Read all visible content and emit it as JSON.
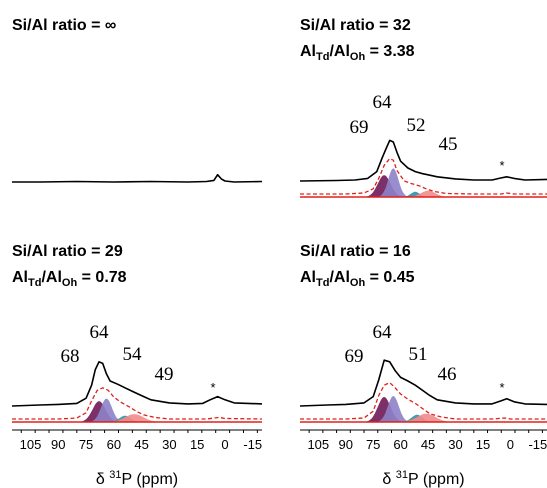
{
  "chart_data": [
    {
      "type": "line",
      "title": "Si/Al ratio = ∞",
      "subtitle": null,
      "peak_labels": [],
      "artifact_marker": null,
      "x_axis_shown": false,
      "xlim": [
        115,
        -20
      ],
      "spectrum": [
        [
          115,
          0.0
        ],
        [
          100,
          0.0
        ],
        [
          80,
          0.01
        ],
        [
          60,
          0.0
        ],
        [
          40,
          0.01
        ],
        [
          20,
          0.0
        ],
        [
          10,
          0.01
        ],
        [
          6,
          0.03
        ],
        [
          4,
          0.14
        ],
        [
          2,
          0.06
        ],
        [
          0,
          0.02
        ],
        [
          -5,
          0.0
        ],
        [
          -20,
          0.01
        ]
      ]
    },
    {
      "type": "line",
      "title": "Si/Al ratio = 32",
      "subtitle": {
        "prefix": "Al",
        "sub1": "Td",
        "mid": "/Al",
        "sub2": "Oh",
        "suffix": " = 3.38"
      },
      "peak_labels": [
        {
          "text": "69",
          "ppm": 69
        },
        {
          "text": "64",
          "ppm": 64
        },
        {
          "text": "52",
          "ppm": 52
        },
        {
          "text": "45",
          "ppm": 45
        }
      ],
      "artifact_marker": {
        "text": "*",
        "ppm": 2
      },
      "x_axis_shown": false,
      "xlim": [
        115,
        -20
      ],
      "spectrum": [
        [
          115,
          0.0
        ],
        [
          95,
          0.01
        ],
        [
          85,
          0.02
        ],
        [
          78,
          0.05
        ],
        [
          73,
          0.18
        ],
        [
          70,
          0.45
        ],
        [
          68,
          0.62
        ],
        [
          66,
          0.78
        ],
        [
          64,
          0.75
        ],
        [
          62,
          0.55
        ],
        [
          60,
          0.38
        ],
        [
          56,
          0.25
        ],
        [
          52,
          0.18
        ],
        [
          48,
          0.14
        ],
        [
          45,
          0.12
        ],
        [
          40,
          0.08
        ],
        [
          30,
          0.04
        ],
        [
          20,
          0.02
        ],
        [
          10,
          0.02
        ],
        [
          5,
          0.06
        ],
        [
          2,
          0.08
        ],
        [
          -2,
          0.05
        ],
        [
          -8,
          0.02
        ],
        [
          -20,
          0.03
        ]
      ],
      "fit_envelope": [
        [
          115,
          0.0
        ],
        [
          90,
          0.0
        ],
        [
          80,
          0.02
        ],
        [
          75,
          0.1
        ],
        [
          72,
          0.3
        ],
        [
          69,
          0.55
        ],
        [
          66,
          0.68
        ],
        [
          64,
          0.65
        ],
        [
          62,
          0.45
        ],
        [
          58,
          0.25
        ],
        [
          54,
          0.2
        ],
        [
          50,
          0.16
        ],
        [
          46,
          0.1
        ],
        [
          42,
          0.05
        ],
        [
          35,
          0.01
        ],
        [
          20,
          0.0
        ],
        [
          5,
          0.0
        ],
        [
          2,
          0.02
        ],
        [
          -2,
          0.0
        ],
        [
          -20,
          0.0
        ]
      ],
      "components": [
        {
          "color": "#6e1a57",
          "center": 69,
          "height": 0.42,
          "width": 3.5
        },
        {
          "color": "#8e82c8",
          "center": 64,
          "height": 0.55,
          "width": 2.8
        },
        {
          "color": "#2e8fa6",
          "center": 52,
          "height": 0.1,
          "width": 2.5
        },
        {
          "color": "#f18c8c",
          "center": 45,
          "height": 0.12,
          "width": 4
        }
      ]
    },
    {
      "type": "line",
      "title": "Si/Al ratio = 29",
      "subtitle": {
        "prefix": "Al",
        "sub1": "Td",
        "mid": "/Al",
        "sub2": "Oh",
        "suffix": " = 0.78"
      },
      "peak_labels": [
        {
          "text": "68",
          "ppm": 68
        },
        {
          "text": "64",
          "ppm": 64
        },
        {
          "text": "54",
          "ppm": 54
        },
        {
          "text": "49",
          "ppm": 49
        }
      ],
      "artifact_marker": {
        "text": "*",
        "ppm": 2
      },
      "x_axis_shown": true,
      "xlabel": {
        "prefix": "δ ",
        "sup": "31",
        "suffix": "P (ppm)"
      },
      "xticks": [
        "105",
        "90",
        "75",
        "60",
        "45",
        "30",
        "15",
        "0",
        "-15"
      ],
      "xtick_values": [
        105,
        90,
        75,
        60,
        45,
        30,
        15,
        0,
        -15
      ],
      "xlim": [
        115,
        -20
      ],
      "spectrum": [
        [
          115,
          0.0
        ],
        [
          100,
          0.02
        ],
        [
          90,
          0.03
        ],
        [
          80,
          0.05
        ],
        [
          75,
          0.15
        ],
        [
          72,
          0.4
        ],
        [
          70,
          0.7
        ],
        [
          68,
          0.85
        ],
        [
          66,
          0.82
        ],
        [
          64,
          0.62
        ],
        [
          62,
          0.48
        ],
        [
          58,
          0.42
        ],
        [
          54,
          0.35
        ],
        [
          50,
          0.28
        ],
        [
          45,
          0.2
        ],
        [
          40,
          0.12
        ],
        [
          30,
          0.06
        ],
        [
          20,
          0.04
        ],
        [
          12,
          0.05
        ],
        [
          8,
          0.12
        ],
        [
          4,
          0.18
        ],
        [
          0,
          0.12
        ],
        [
          -5,
          0.06
        ],
        [
          -20,
          0.04
        ]
      ],
      "fit_envelope": [
        [
          115,
          0.0
        ],
        [
          90,
          0.0
        ],
        [
          80,
          0.02
        ],
        [
          75,
          0.12
        ],
        [
          72,
          0.35
        ],
        [
          69,
          0.55
        ],
        [
          66,
          0.6
        ],
        [
          63,
          0.55
        ],
        [
          60,
          0.42
        ],
        [
          56,
          0.32
        ],
        [
          52,
          0.24
        ],
        [
          48,
          0.15
        ],
        [
          44,
          0.08
        ],
        [
          38,
          0.03
        ],
        [
          30,
          0.0
        ],
        [
          10,
          0.0
        ],
        [
          3,
          0.03
        ],
        [
          0,
          0.01
        ],
        [
          -20,
          0.0
        ]
      ],
      "components": [
        {
          "color": "#6e1a57",
          "center": 68,
          "height": 0.4,
          "width": 3.5
        },
        {
          "color": "#8e82c8",
          "center": 64,
          "height": 0.45,
          "width": 3
        },
        {
          "color": "#2e8fa6",
          "center": 54,
          "height": 0.12,
          "width": 3
        },
        {
          "color": "#f18c8c",
          "center": 49,
          "height": 0.15,
          "width": 5
        }
      ]
    },
    {
      "type": "line",
      "title": "Si/Al ratio = 16",
      "subtitle": {
        "prefix": "Al",
        "sub1": "Td",
        "mid": "/Al",
        "sub2": "Oh",
        "suffix": " = 0.45"
      },
      "peak_labels": [
        {
          "text": "69",
          "ppm": 69
        },
        {
          "text": "64",
          "ppm": 64
        },
        {
          "text": "51",
          "ppm": 51
        },
        {
          "text": "46",
          "ppm": 46
        }
      ],
      "artifact_marker": {
        "text": "*",
        "ppm": 2
      },
      "x_axis_shown": true,
      "xlabel": {
        "prefix": "δ ",
        "sup": "31",
        "suffix": "P (ppm)"
      },
      "xticks": [
        "105",
        "90",
        "75",
        "60",
        "45",
        "30",
        "15",
        "0",
        "-15"
      ],
      "xtick_values": [
        105,
        90,
        75,
        60,
        45,
        30,
        15,
        0,
        -15
      ],
      "xlim": [
        115,
        -20
      ],
      "spectrum": [
        [
          115,
          0.0
        ],
        [
          100,
          0.02
        ],
        [
          90,
          0.03
        ],
        [
          80,
          0.06
        ],
        [
          75,
          0.18
        ],
        [
          72,
          0.5
        ],
        [
          69,
          0.88
        ],
        [
          66,
          0.85
        ],
        [
          63,
          0.68
        ],
        [
          60,
          0.55
        ],
        [
          56,
          0.48
        ],
        [
          52,
          0.4
        ],
        [
          48,
          0.3
        ],
        [
          44,
          0.2
        ],
        [
          40,
          0.12
        ],
        [
          30,
          0.06
        ],
        [
          20,
          0.04
        ],
        [
          10,
          0.04
        ],
        [
          5,
          0.1
        ],
        [
          2,
          0.14
        ],
        [
          -2,
          0.08
        ],
        [
          -8,
          0.04
        ],
        [
          -20,
          0.03
        ]
      ],
      "fit_envelope": [
        [
          115,
          0.0
        ],
        [
          90,
          0.0
        ],
        [
          80,
          0.02
        ],
        [
          75,
          0.15
        ],
        [
          72,
          0.45
        ],
        [
          69,
          0.65
        ],
        [
          66,
          0.7
        ],
        [
          63,
          0.6
        ],
        [
          60,
          0.48
        ],
        [
          56,
          0.38
        ],
        [
          52,
          0.3
        ],
        [
          48,
          0.2
        ],
        [
          44,
          0.1
        ],
        [
          38,
          0.04
        ],
        [
          30,
          0.0
        ],
        [
          10,
          0.0
        ],
        [
          3,
          0.02
        ],
        [
          0,
          0.0
        ],
        [
          -20,
          0.0
        ]
      ],
      "components": [
        {
          "color": "#6e1a57",
          "center": 69,
          "height": 0.48,
          "width": 3.5
        },
        {
          "color": "#8e82c8",
          "center": 64,
          "height": 0.5,
          "width": 3
        },
        {
          "color": "#2e8fa6",
          "center": 51,
          "height": 0.14,
          "width": 3
        },
        {
          "color": "#f18c8c",
          "center": 46,
          "height": 0.16,
          "width": 5
        }
      ]
    }
  ],
  "colors": {
    "spectrum": "#000000",
    "fit_envelope": "#e0201b",
    "baseline": "#e0201b"
  }
}
